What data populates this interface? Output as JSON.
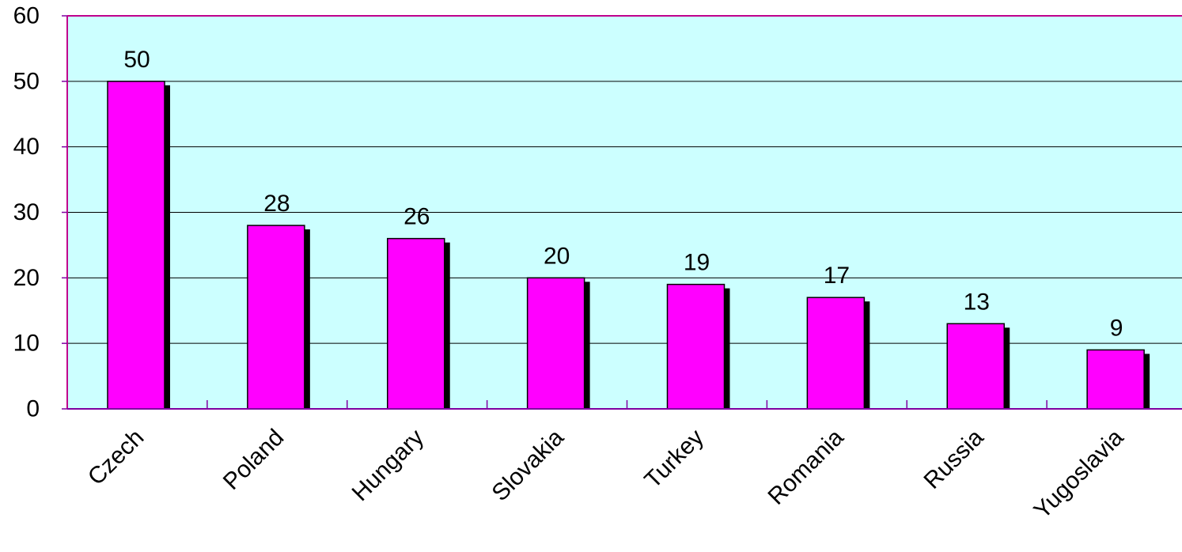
{
  "chart_data": {
    "type": "bar",
    "categories": [
      "Czech",
      "Poland",
      "Hungary",
      "Slovakia",
      "Turkey",
      "Romania",
      "Russia",
      "Yugoslavia"
    ],
    "values": [
      50,
      28,
      26,
      20,
      19,
      17,
      13,
      9
    ],
    "data_labels": [
      "50",
      "28",
      "26",
      "20",
      "19",
      "17",
      "13",
      "9"
    ],
    "y_ticks": [
      "0",
      "10",
      "20",
      "30",
      "40",
      "50",
      "60"
    ],
    "ylim": [
      0,
      60
    ],
    "grid": true,
    "legend": "none",
    "title": "",
    "xlabel": "",
    "ylabel": ""
  },
  "colors": {
    "bar": "#FF00FF",
    "bar_shadow": "#000000",
    "bar_border": "#000000",
    "plot_background": "#CCFFFF",
    "plot_border": "#C0008C",
    "grid": "#000000",
    "axis": "#7F00A0"
  }
}
